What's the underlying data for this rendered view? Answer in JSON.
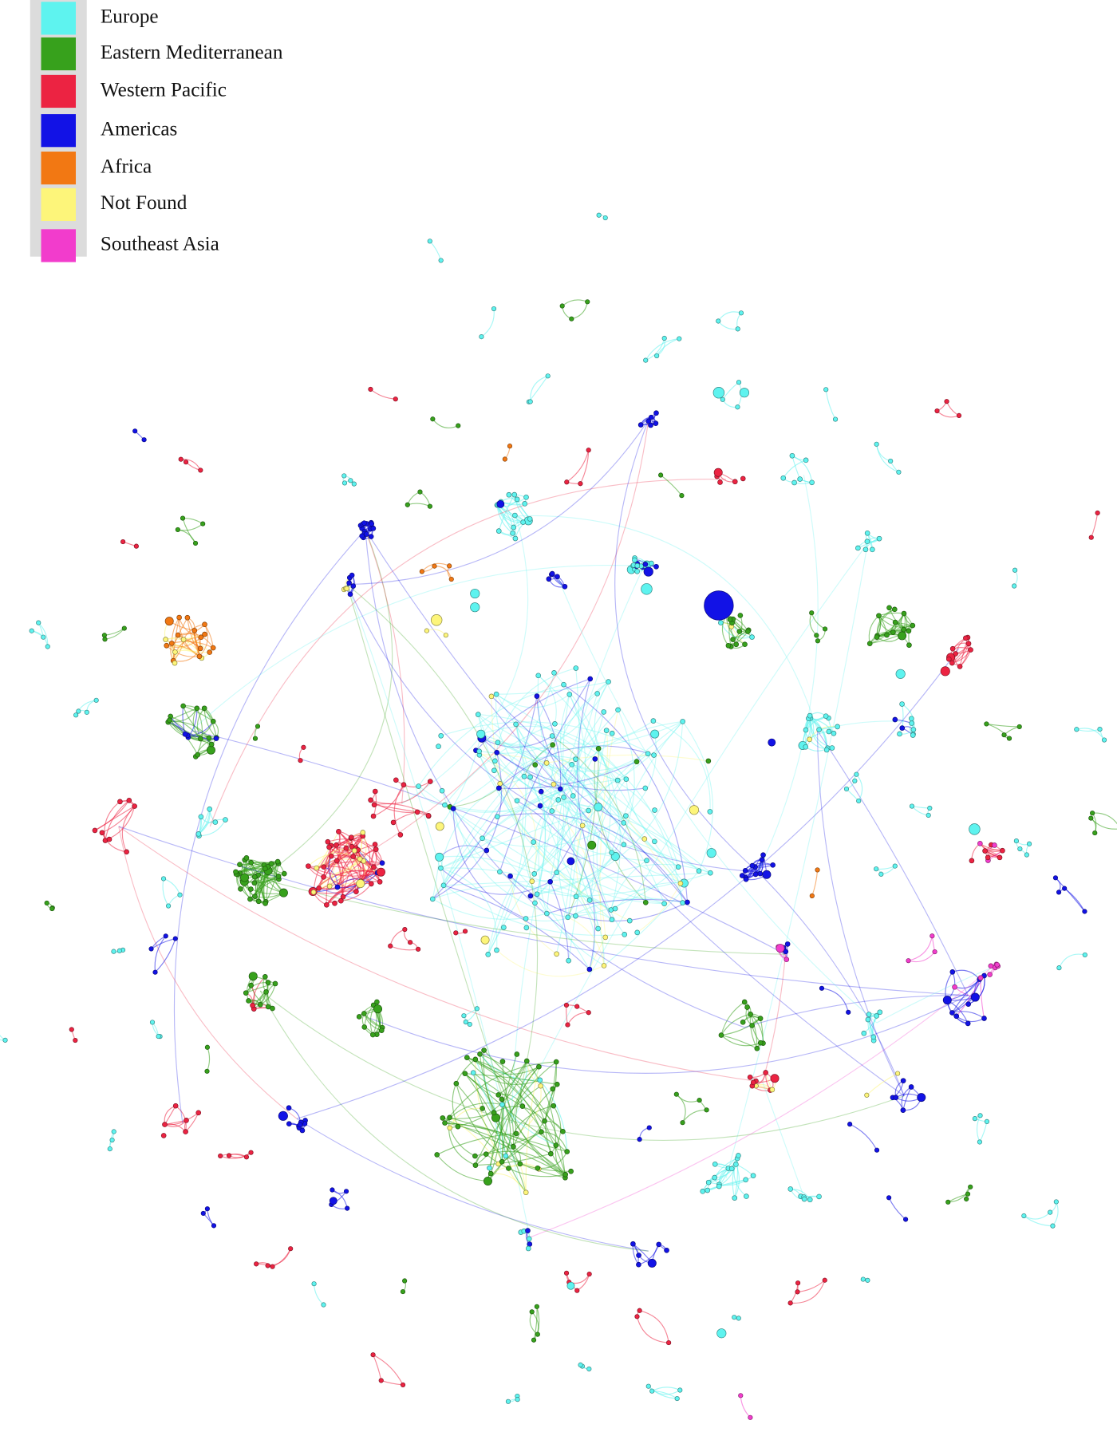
{
  "legend": {
    "items": [
      {
        "name": "Europe",
        "color": "#5ef3ef"
      },
      {
        "name": "Eastern Mediterranean",
        "color": "#37a11c"
      },
      {
        "name": "Western Pacific",
        "color": "#ec2342"
      },
      {
        "name": "Americas",
        "color": "#1212e6"
      },
      {
        "name": "Africa",
        "color": "#f27813"
      },
      {
        "name": "Not Found",
        "color": "#fdf57a"
      },
      {
        "name": "Southeast Asia",
        "color": "#f23ccc"
      }
    ]
  }
}
